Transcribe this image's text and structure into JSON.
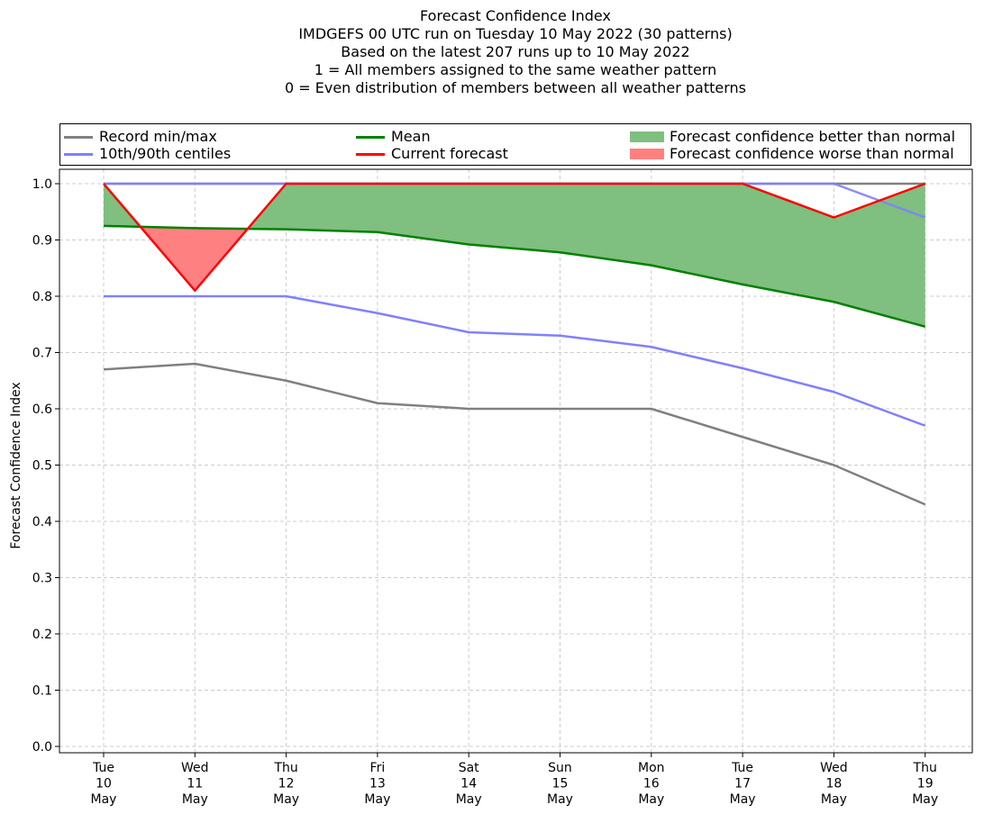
{
  "chart_data": {
    "type": "line",
    "title_lines": [
      "Forecast Confidence Index",
      "IMDGEFS 00 UTC run on Tuesday 10 May 2022 (30 patterns)",
      "Based on the latest 207 runs up to 10 May 2022",
      "1 = All members assigned to the same weather pattern",
      "0 = Even distribution of members between all weather patterns"
    ],
    "ylabel": "Forecast Confidence Index",
    "xlabel": "",
    "ylim": [
      0.0,
      1.0
    ],
    "yticks": [
      "0.0",
      "0.1",
      "0.2",
      "0.3",
      "0.4",
      "0.5",
      "0.6",
      "0.7",
      "0.8",
      "0.9",
      "1.0"
    ],
    "categories": [
      [
        "Tue",
        "10",
        "May"
      ],
      [
        "Wed",
        "11",
        "May"
      ],
      [
        "Thu",
        "12",
        "May"
      ],
      [
        "Fri",
        "13",
        "May"
      ],
      [
        "Sat",
        "14",
        "May"
      ],
      [
        "Sun",
        "15",
        "May"
      ],
      [
        "Mon",
        "16",
        "May"
      ],
      [
        "Tue",
        "17",
        "May"
      ],
      [
        "Wed",
        "18",
        "May"
      ],
      [
        "Thu",
        "19",
        "May"
      ]
    ],
    "grid": true,
    "legend_placement": "top",
    "series": [
      {
        "key": "record_max",
        "color": "#808080",
        "values": [
          1.0,
          1.0,
          1.0,
          1.0,
          1.0,
          1.0,
          1.0,
          1.0,
          1.0,
          1.0
        ]
      },
      {
        "key": "record_min",
        "color": "#808080",
        "values": [
          0.67,
          0.68,
          0.65,
          0.61,
          0.6,
          0.6,
          0.6,
          0.55,
          0.5,
          0.43
        ]
      },
      {
        "key": "p90",
        "color": "#8080ff",
        "values": [
          1.0,
          1.0,
          1.0,
          1.0,
          1.0,
          1.0,
          1.0,
          1.0,
          1.0,
          0.94
        ]
      },
      {
        "key": "p10",
        "color": "#8080ff",
        "values": [
          0.8,
          0.8,
          0.8,
          0.77,
          0.736,
          0.73,
          0.71,
          0.672,
          0.63,
          0.57
        ]
      },
      {
        "key": "mean",
        "color": "#008000",
        "values": [
          0.925,
          0.921,
          0.919,
          0.914,
          0.892,
          0.878,
          0.855,
          0.821,
          0.79,
          0.746
        ]
      },
      {
        "key": "current",
        "color": "#ff0000",
        "values": [
          1.0,
          0.81,
          1.0,
          1.0,
          1.0,
          1.0,
          1.0,
          1.0,
          0.94,
          1.0
        ]
      }
    ],
    "fill_better_color": "#7fbf7f",
    "fill_worse_color": "#ff8080",
    "legend": [
      {
        "label": "Record min/max",
        "kind": "line",
        "color": "#808080"
      },
      {
        "label": "10th/90th centiles",
        "kind": "line",
        "color": "#8080ff"
      },
      {
        "label": "Mean",
        "kind": "line",
        "color": "#008000"
      },
      {
        "label": "Current forecast",
        "kind": "line",
        "color": "#ff0000"
      },
      {
        "label": "Forecast confidence better than normal",
        "kind": "patch",
        "color": "#7fbf7f"
      },
      {
        "label": "Forecast confidence worse than normal",
        "kind": "patch",
        "color": "#ff8080"
      }
    ]
  }
}
